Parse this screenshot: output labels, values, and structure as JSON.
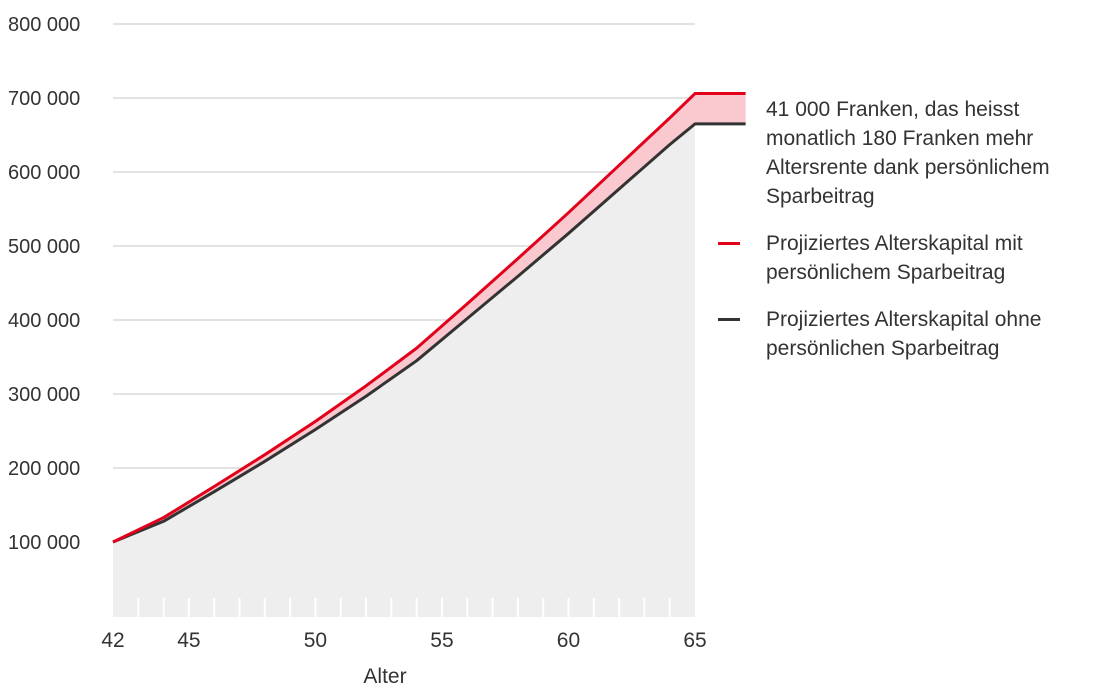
{
  "chart_data": {
    "type": "area",
    "xlabel": "Alter",
    "ylabel": "",
    "xlim": [
      42,
      67
    ],
    "ylim": [
      0,
      800000
    ],
    "x_ticks": [
      42,
      45,
      50,
      55,
      60,
      65
    ],
    "y_ticks": [
      100000,
      200000,
      300000,
      400000,
      500000,
      600000,
      700000,
      800000
    ],
    "y_tick_labels": [
      "100 000",
      "200 000",
      "300 000",
      "400 000",
      "500 000",
      "600 000",
      "700 000",
      "800 000"
    ],
    "grid": true,
    "legend_position": "right",
    "series": [
      {
        "name": "Projiziertes Alterskapital mit persönlichem Sparbeitrag",
        "color": "#e2001a",
        "x": [
          42,
          44,
          46,
          48,
          50,
          52,
          54,
          56,
          58,
          60,
          62,
          64,
          65,
          67
        ],
        "y": [
          100000,
          133000,
          175000,
          218000,
          263000,
          311000,
          362000,
          422000,
          483000,
          545000,
          609000,
          673000,
          706000,
          706000
        ]
      },
      {
        "name": "Projiziertes Alterskapital ohne persönlichen Sparbeitrag",
        "color": "#333333",
        "x": [
          42,
          44,
          46,
          48,
          50,
          52,
          54,
          56,
          58,
          60,
          62,
          64,
          65,
          67
        ],
        "y": [
          100000,
          128000,
          168000,
          209000,
          252000,
          297000,
          345000,
          402000,
          459000,
          517000,
          577000,
          637000,
          665000,
          665000
        ]
      }
    ],
    "annotation": "41 000 Franken, das heisst monatlich 180 Franken mehr Altersrente dank persönlichem Sparbeitrag"
  },
  "colors": {
    "gap_fill": "#f9c9cf",
    "base_fill": "#eeeeee",
    "grid": "#e3e3e3"
  }
}
